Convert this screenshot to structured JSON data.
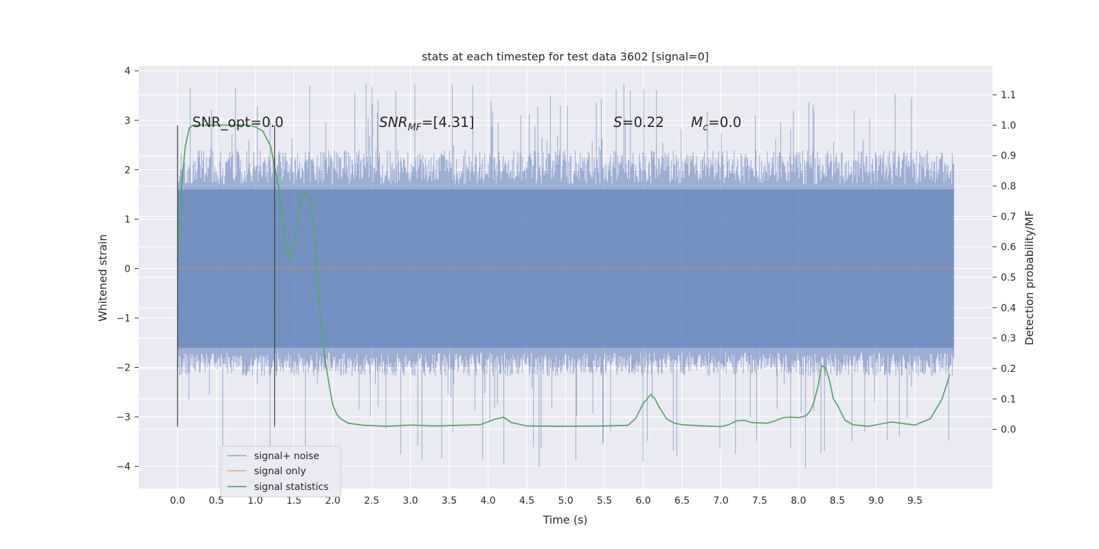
{
  "chart_data": {
    "type": "line",
    "title": "stats at each timestep for test data 3602 [signal=0]",
    "xlabel": "Time (s)",
    "ylabel": "Whitened strain",
    "y2label": "Detection probability/MF",
    "xlim": [
      -0.5,
      10.5
    ],
    "ylim": [
      -4.45,
      4.1
    ],
    "y2lim": [
      -0.195,
      1.195
    ],
    "x_ticks": [
      "0.0",
      "0.5",
      "1.0",
      "1.5",
      "2.0",
      "2.5",
      "3.0",
      "3.5",
      "4.0",
      "4.5",
      "5.0",
      "5.5",
      "6.0",
      "6.5",
      "7.0",
      "7.5",
      "8.0",
      "8.5",
      "9.0",
      "9.5"
    ],
    "y_ticks": [
      "4",
      "3",
      "2",
      "1",
      "0",
      "−1",
      "−2",
      "−3",
      "−4"
    ],
    "y2_ticks": [
      "1.1",
      "1.0",
      "0.9",
      "0.8",
      "0.7",
      "0.6",
      "0.5",
      "0.4",
      "0.3",
      "0.2",
      "0.1",
      "0.0"
    ],
    "grid": true,
    "legend_position": "lower-left",
    "annotations": {
      "snr_opt": "SNR_opt=0.0",
      "snr_mf_prefix": "SNR",
      "snr_mf_sub": "MF",
      "snr_mf_value": "=[4.31]",
      "s_var": "S",
      "s_value": "=0.22",
      "mc_var": "M",
      "mc_sub": "c",
      "mc_value": "=0.0"
    },
    "markers_x": [
      0.0,
      1.25
    ],
    "markers_yrange": [
      -3.2,
      2.9
    ],
    "noise": {
      "name": "signal+ noise",
      "color": "#4c72b0",
      "x_range": [
        0.0,
        10.0
      ],
      "typical_range": [
        -2.0,
        2.2
      ],
      "peaks_max": 3.75,
      "peaks_min": -4.05
    },
    "series": [
      {
        "name": "signal only",
        "color": "#dd8452",
        "axis": "left",
        "x": [
          0.0,
          10.0
        ],
        "values": [
          0.0,
          0.0
        ]
      },
      {
        "name": "signal statistics",
        "color": "#55a868",
        "axis": "right",
        "x": [
          0.0,
          0.05,
          0.1,
          0.15,
          0.2,
          0.3,
          0.5,
          0.7,
          0.9,
          1.0,
          1.1,
          1.2,
          1.3,
          1.4,
          1.45,
          1.5,
          1.55,
          1.6,
          1.65,
          1.7,
          1.75,
          1.8,
          1.85,
          1.9,
          1.95,
          2.0,
          2.05,
          2.1,
          2.2,
          2.4,
          2.7,
          3.0,
          3.3,
          3.6,
          3.9,
          4.1,
          4.2,
          4.3,
          4.5,
          5.0,
          5.5,
          5.8,
          5.9,
          6.0,
          6.1,
          6.15,
          6.2,
          6.3,
          6.4,
          6.5,
          6.7,
          7.0,
          7.1,
          7.2,
          7.3,
          7.4,
          7.6,
          7.7,
          7.8,
          7.9,
          8.0,
          8.1,
          8.15,
          8.2,
          8.25,
          8.3,
          8.35,
          8.4,
          8.45,
          8.5,
          8.6,
          8.7,
          8.9,
          9.2,
          9.5,
          9.7,
          9.85,
          9.95
        ],
        "values": [
          0.55,
          0.8,
          0.93,
          0.99,
          1.0,
          1.0,
          1.0,
          1.0,
          1.0,
          0.995,
          0.98,
          0.93,
          0.8,
          0.59,
          0.56,
          0.61,
          0.7,
          0.77,
          0.78,
          0.76,
          0.68,
          0.5,
          0.34,
          0.23,
          0.15,
          0.08,
          0.05,
          0.035,
          0.02,
          0.013,
          0.01,
          0.014,
          0.011,
          0.013,
          0.015,
          0.034,
          0.04,
          0.022,
          0.011,
          0.01,
          0.011,
          0.013,
          0.035,
          0.085,
          0.115,
          0.1,
          0.075,
          0.035,
          0.02,
          0.015,
          0.012,
          0.009,
          0.015,
          0.028,
          0.03,
          0.022,
          0.02,
          0.028,
          0.038,
          0.04,
          0.038,
          0.045,
          0.06,
          0.09,
          0.14,
          0.21,
          0.2,
          0.16,
          0.1,
          0.08,
          0.03,
          0.015,
          0.01,
          0.024,
          0.014,
          0.035,
          0.1,
          0.18
        ]
      }
    ]
  }
}
